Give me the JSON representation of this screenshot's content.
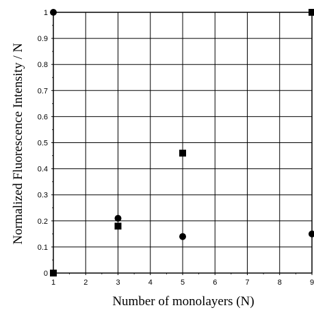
{
  "chart_data": {
    "type": "scatter",
    "title": "",
    "xlabel": "Number of monolayers (N)",
    "ylabel": "Normalized Fluorescence Intensity / N",
    "xlim": [
      1,
      9
    ],
    "ylim": [
      0,
      1
    ],
    "x_ticks": [
      "1",
      "2",
      "3",
      "4",
      "5",
      "6",
      "7",
      "8",
      "9"
    ],
    "y_ticks": [
      "0",
      "0.1",
      "0.2",
      "0.3",
      "0.4",
      "0.5",
      "0.6",
      "0.7",
      "0.8",
      "0.9",
      "1"
    ],
    "grid": true,
    "legend": "none",
    "series": [
      {
        "marker": "circle",
        "color": "#000000",
        "points": [
          {
            "x": 1,
            "y": 1.0
          },
          {
            "x": 3,
            "y": 0.21
          },
          {
            "x": 5,
            "y": 0.14
          },
          {
            "x": 9,
            "y": 0.15
          }
        ]
      },
      {
        "marker": "square",
        "color": "#000000",
        "points": [
          {
            "x": 1,
            "y": 0.0
          },
          {
            "x": 3,
            "y": 0.18
          },
          {
            "x": 5,
            "y": 0.46
          },
          {
            "x": 9,
            "y": 1.0
          }
        ]
      }
    ]
  }
}
